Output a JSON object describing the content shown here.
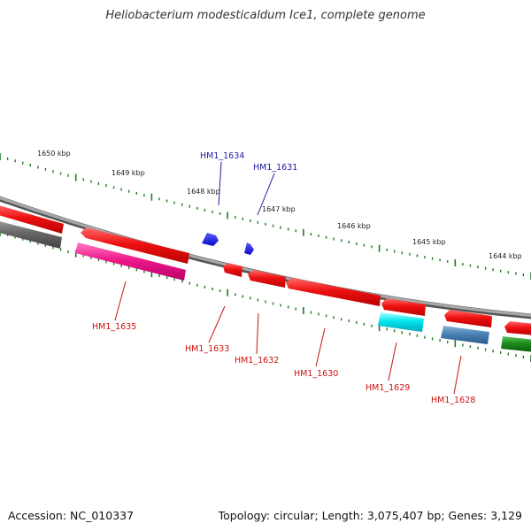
{
  "title": "Heliobacterium modesticaldum Ice1, complete genome",
  "footer": {
    "accession": "Accession: NC_010337",
    "summary": "Topology: circular; Length: 3,075,407 bp; Genes: 3,129"
  },
  "scale_labels": [
    "1650 kbp",
    "1649 kbp",
    "1648 kbp",
    "1647 kbp",
    "1646 kbp",
    "1645 kbp",
    "1644 kbp"
  ],
  "gene_labels": {
    "forward": [
      "HM1_1634",
      "HM1_1631"
    ],
    "reverse": [
      "HM1_1635",
      "HM1_1633",
      "HM1_1632",
      "HM1_1630",
      "HM1_1629",
      "HM1_1628"
    ]
  },
  "colors": {
    "backbone": "#8a8a8a",
    "scale_tick": "#1e7a1e",
    "gene_red": "#ee1111",
    "gene_magenta": "#ee1a8a",
    "gene_gray": "#666666",
    "gene_blue": "#1a1aee",
    "gene_cyan": "#00e5ee",
    "gene_steelblue": "#4a82b4",
    "gene_green": "#1e8a1e",
    "label_forward": "#1a1aa0",
    "label_reverse": "#cc1111"
  }
}
